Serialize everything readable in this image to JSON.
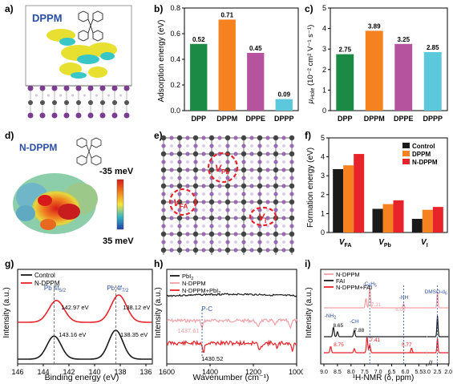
{
  "panel_labels": [
    "a)",
    "b)",
    "c)",
    "d)",
    "e)",
    "f)",
    "g)",
    "h)",
    "i)"
  ],
  "panel_a": {
    "title": "DPPM"
  },
  "panel_d": {
    "title": "N-DPPM",
    "scale_top": "-35 meV",
    "scale_bottom": "35 meV"
  },
  "panel_e": {
    "labels": [
      "V",
      "V",
      "V"
    ],
    "subs": [
      "Pb",
      "FA",
      "I"
    ]
  },
  "colors": {
    "green": "#1a8a44",
    "orange": "#f5821f",
    "purple": "#b5539e",
    "cyan": "#5bc8dc",
    "black": "#1a1a1a",
    "red": "#e8232a",
    "pink": "#f2a0a6",
    "blue": "#2b4fa3"
  },
  "chart_data": [
    {
      "id": "b",
      "type": "bar",
      "categories": [
        "DPP",
        "DPPM",
        "DPPE",
        "DPPP"
      ],
      "values": [
        0.52,
        0.71,
        0.45,
        0.09
      ],
      "value_labels": [
        "0.52",
        "0.71",
        "0.45",
        "0.09"
      ],
      "ylabel": "Adsorption energy (eV)",
      "ylim": [
        0.0,
        0.8
      ],
      "yticks": [
        "0.0",
        "0.2",
        "0.4",
        "0.6",
        "0.8"
      ]
    },
    {
      "id": "c",
      "type": "bar",
      "categories": [
        "DPP",
        "DPPM",
        "DPPE",
        "DPPP"
      ],
      "values": [
        2.75,
        3.89,
        3.25,
        2.85
      ],
      "value_labels": [
        "2.75",
        "3.89",
        "3.25",
        "2.85"
      ],
      "ylabel_main": "μ",
      "ylabel_sub": "Hole",
      "ylabel_rest": " (10⁻² cm² V⁻¹ s⁻¹)",
      "ylim": [
        0,
        5
      ],
      "yticks": [
        "0",
        "1",
        "2",
        "3",
        "4",
        "5"
      ]
    },
    {
      "id": "f",
      "type": "bar",
      "categories": [
        "V",
        "V",
        "V"
      ],
      "category_subs": [
        "FA",
        "Pb",
        "I"
      ],
      "series": [
        {
          "name": "Control",
          "values": [
            3.35,
            1.25,
            0.72
          ]
        },
        {
          "name": "DPPM",
          "values": [
            3.55,
            1.5,
            1.2
          ]
        },
        {
          "name": "N-DPPM",
          "values": [
            4.15,
            1.7,
            1.35
          ]
        }
      ],
      "ylabel": "Formation energy (eV)",
      "ylim": [
        0,
        5
      ],
      "yticks": [
        "0",
        "1",
        "2",
        "3",
        "4",
        "5"
      ]
    },
    {
      "id": "g",
      "type": "line",
      "xlabel": "Binding energy (eV)",
      "ylabel": "Intensity (a.u.)",
      "xlim": [
        146,
        135.5
      ],
      "xticks": [
        "146",
        "144",
        "142",
        "140",
        "138",
        "136"
      ],
      "series": [
        {
          "name": "Control",
          "peaks": [
            143.16,
            138.35
          ]
        },
        {
          "name": "N-DPPM",
          "peaks": [
            142.97,
            138.12
          ]
        }
      ],
      "annotations": {
        "pb52_main": "Pb 4f",
        "pb52_sub": "5/2",
        "pb72_main": "Pb 4f",
        "pb72_sub": "7/2",
        "red_left": "142.97 eV",
        "red_right": "138.12 eV",
        "black_left": "143.16 eV",
        "black_right": "138.35 eV"
      }
    },
    {
      "id": "h",
      "type": "line",
      "xlabel": "Wavenumber (cm⁻¹)",
      "ylabel": "Intensity (a.u.)",
      "xlim": [
        1600,
        1000
      ],
      "xticks": [
        "1600",
        "1400",
        "1200",
        "1000"
      ],
      "series": [
        {
          "name_main": "PbI",
          "name_sub": "2"
        },
        {
          "name_main": "N-DPPM",
          "name_sub": ""
        },
        {
          "name_main": "N-DPPM+PbI",
          "name_sub": "2"
        }
      ],
      "annotations": {
        "pc": "P-C",
        "peak_pink": "1437.61",
        "peak_red": "1430.52"
      }
    },
    {
      "id": "i",
      "type": "line",
      "xlabel": "¹H-NMR (δ, ppm)",
      "ylabel": "Intensity (a.u.)",
      "xticks": [
        "9.0",
        "8.5",
        "8.0",
        "7.5",
        "7.0",
        "6.5",
        "6.0",
        "5.5",
        "3.0",
        "2.5",
        "2.0"
      ],
      "series": [
        {
          "name": "N-DPPM"
        },
        {
          "name": "FAI"
        },
        {
          "name": "N-DPPM+FAI"
        }
      ],
      "annotations": {
        "c6h5": "-C",
        "c6h5_sub1": "6",
        "c6h5_mid": "H",
        "c6h5_sub2": "5",
        "nh": "-NH",
        "nh2": "-NH",
        "nh2_sub": "2",
        "ch": "-CH",
        "dmso": "DMSO-d",
        "dmso_sub": "6",
        "p731": "7.31",
        "p606": "6.06",
        "p865": "8.65",
        "p788": "7.88",
        "p875": "8.75",
        "p741": "7.41",
        "p577": "5.77"
      }
    }
  ]
}
